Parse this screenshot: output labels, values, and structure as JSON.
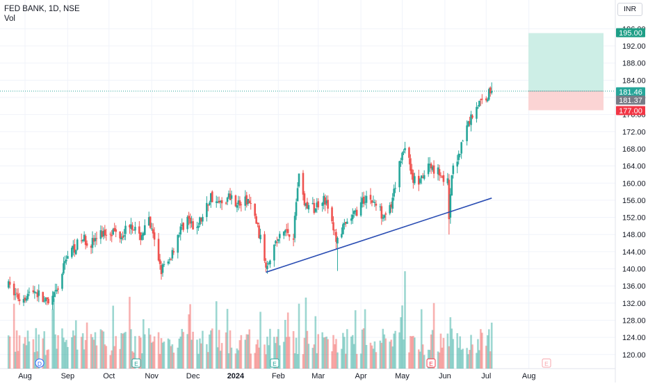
{
  "header": {
    "symbol": "FED BANK, 1D, NSE",
    "vol": "Vol",
    "currency": "INR"
  },
  "colors": {
    "up": "#26a69a",
    "down": "#ef5350",
    "trend": "#2a4db3",
    "target_fill": "#cdeee6",
    "stop_fill": "#fbd4d4",
    "target_tag": "#1e9e86",
    "stop_tag": "#f23645",
    "last_tag": "#787b86"
  },
  "chart_data": {
    "type": "candlestick",
    "title": "",
    "x_axis": {
      "labels": [
        "Aug",
        "Sep",
        "Oct",
        "Nov",
        "Dec",
        "2024",
        "Feb",
        "Mar",
        "Apr",
        "May",
        "Jun",
        "Jul",
        "Aug"
      ]
    },
    "y_axis": {
      "range": [
        117,
        196
      ],
      "ticks": [
        "120.00",
        "124.00",
        "128.00",
        "132.00",
        "136.00",
        "140.00",
        "144.00",
        "148.00",
        "152.00",
        "156.00",
        "160.00",
        "164.00",
        "168.00",
        "172.00",
        "176.00",
        "180.00",
        "184.00",
        "188.00",
        "192.00",
        "196.00"
      ]
    },
    "price_levels": [
      {
        "label": "195.00",
        "value": 195.0,
        "kind": "target"
      },
      {
        "label": "181.46",
        "value": 181.46,
        "kind": "last"
      },
      {
        "label": "181.37",
        "value": 181.37,
        "kind": "prev"
      },
      {
        "label": "177.00",
        "value": 177.0,
        "kind": "stop"
      }
    ],
    "position": {
      "entry": 181.46,
      "target": 195.0,
      "stop": 177.0
    },
    "trendline": {
      "from": {
        "date": "2024-01-23",
        "price": 139.2
      },
      "to": {
        "date": "2024-07-05",
        "price": 156.5
      }
    },
    "event_markers": [
      {
        "label": "D",
        "month": "Aug"
      },
      {
        "label": "E",
        "month": "Oct"
      },
      {
        "label": "E",
        "month": "Jan"
      },
      {
        "label": "E",
        "month": "May"
      },
      {
        "label": "E",
        "month": "Jul"
      }
    ],
    "anchors": [
      [
        "2023-07-20",
        136
      ],
      [
        "2023-07-28",
        133
      ],
      [
        "2023-08-08",
        135
      ],
      [
        "2023-08-18",
        131.5
      ],
      [
        "2023-08-25",
        135
      ],
      [
        "2023-08-31",
        143
      ],
      [
        "2023-09-06",
        145
      ],
      [
        "2023-09-12",
        147
      ],
      [
        "2023-09-18",
        146
      ],
      [
        "2023-09-25",
        148
      ],
      [
        "2023-10-02",
        149
      ],
      [
        "2023-10-10",
        148
      ],
      [
        "2023-10-17",
        151
      ],
      [
        "2023-10-23",
        147
      ],
      [
        "2023-10-30",
        151
      ],
      [
        "2023-11-03",
        146
      ],
      [
        "2023-11-08",
        140
      ],
      [
        "2023-11-13",
        141
      ],
      [
        "2023-11-20",
        148
      ],
      [
        "2023-11-27",
        152
      ],
      [
        "2023-12-01",
        149
      ],
      [
        "2023-12-08",
        152
      ],
      [
        "2023-12-14",
        157
      ],
      [
        "2023-12-20",
        155
      ],
      [
        "2023-12-28",
        157
      ],
      [
        "2024-01-04",
        155
      ],
      [
        "2024-01-10",
        156
      ],
      [
        "2024-01-16",
        151
      ],
      [
        "2024-01-23",
        141
      ],
      [
        "2024-01-30",
        146
      ],
      [
        "2024-02-06",
        149
      ],
      [
        "2024-02-12",
        148
      ],
      [
        "2024-02-16",
        163
      ],
      [
        "2024-02-20",
        155
      ],
      [
        "2024-02-27",
        154
      ],
      [
        "2024-03-05",
        157
      ],
      [
        "2024-03-08",
        154
      ],
      [
        "2024-03-14",
        147
      ],
      [
        "2024-03-21",
        150
      ],
      [
        "2024-03-28",
        153
      ],
      [
        "2024-04-05",
        157
      ],
      [
        "2024-04-12",
        155
      ],
      [
        "2024-04-16",
        153
      ],
      [
        "2024-04-23",
        154
      ],
      [
        "2024-04-30",
        166
      ],
      [
        "2024-05-03",
        169
      ],
      [
        "2024-05-09",
        161
      ],
      [
        "2024-05-14",
        160
      ],
      [
        "2024-05-20",
        164
      ],
      [
        "2024-05-27",
        163
      ],
      [
        "2024-06-03",
        160
      ],
      [
        "2024-06-04",
        151
      ],
      [
        "2024-06-06",
        162
      ],
      [
        "2024-06-12",
        168
      ],
      [
        "2024-06-18",
        174
      ],
      [
        "2024-06-24",
        178
      ],
      [
        "2024-06-28",
        179
      ],
      [
        "2024-07-04",
        181.37
      ],
      [
        "2024-07-05",
        181.46
      ]
    ],
    "note": "last close 181.46"
  }
}
